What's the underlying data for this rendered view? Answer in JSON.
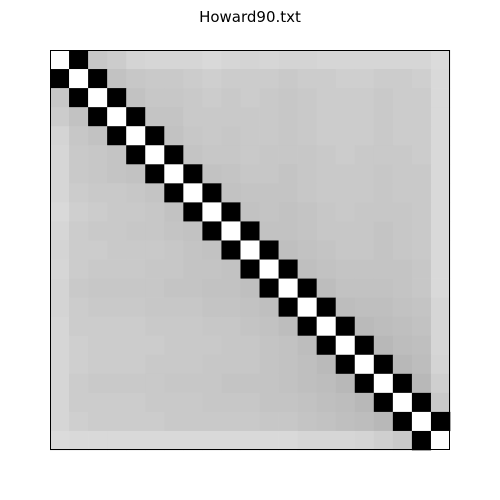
{
  "chart_data": {
    "type": "heatmap",
    "title": "Howard90.txt",
    "rows": 21,
    "cols": 21,
    "xlabel": "",
    "ylabel": "",
    "axes_ticks": "none",
    "colormap": "gray",
    "value_range": [
      0,
      1
    ],
    "values": [
      [
        1.0,
        0.0,
        0.78,
        0.8,
        0.83,
        0.84,
        0.84,
        0.84,
        0.85,
        0.84,
        0.83,
        0.84,
        0.83,
        0.83,
        0.84,
        0.84,
        0.84,
        0.84,
        0.84,
        0.84,
        0.86
      ],
      [
        0.0,
        1.0,
        0.0,
        0.76,
        0.78,
        0.79,
        0.79,
        0.8,
        0.81,
        0.8,
        0.8,
        0.8,
        0.79,
        0.8,
        0.8,
        0.81,
        0.81,
        0.8,
        0.8,
        0.81,
        0.85
      ],
      [
        0.78,
        0.0,
        1.0,
        0.0,
        0.76,
        0.78,
        0.78,
        0.79,
        0.8,
        0.79,
        0.8,
        0.79,
        0.78,
        0.79,
        0.8,
        0.8,
        0.8,
        0.79,
        0.8,
        0.8,
        0.85
      ],
      [
        0.8,
        0.76,
        0.0,
        1.0,
        0.0,
        0.77,
        0.77,
        0.79,
        0.79,
        0.79,
        0.79,
        0.79,
        0.78,
        0.79,
        0.8,
        0.8,
        0.8,
        0.79,
        0.8,
        0.8,
        0.85
      ],
      [
        0.83,
        0.78,
        0.76,
        0.0,
        1.0,
        0.0,
        0.76,
        0.78,
        0.79,
        0.78,
        0.79,
        0.79,
        0.78,
        0.79,
        0.8,
        0.8,
        0.8,
        0.79,
        0.8,
        0.8,
        0.85
      ],
      [
        0.84,
        0.79,
        0.78,
        0.77,
        0.0,
        1.0,
        0.0,
        0.77,
        0.78,
        0.78,
        0.79,
        0.78,
        0.78,
        0.78,
        0.79,
        0.8,
        0.79,
        0.79,
        0.79,
        0.8,
        0.85
      ],
      [
        0.84,
        0.79,
        0.78,
        0.77,
        0.76,
        0.0,
        1.0,
        0.0,
        0.76,
        0.77,
        0.78,
        0.78,
        0.77,
        0.78,
        0.79,
        0.79,
        0.79,
        0.78,
        0.79,
        0.79,
        0.85
      ],
      [
        0.84,
        0.8,
        0.79,
        0.79,
        0.78,
        0.77,
        0.0,
        1.0,
        0.0,
        0.76,
        0.77,
        0.77,
        0.77,
        0.78,
        0.79,
        0.79,
        0.79,
        0.78,
        0.79,
        0.79,
        0.85
      ],
      [
        0.85,
        0.81,
        0.8,
        0.79,
        0.79,
        0.78,
        0.76,
        0.0,
        1.0,
        0.0,
        0.76,
        0.77,
        0.76,
        0.77,
        0.78,
        0.79,
        0.78,
        0.78,
        0.78,
        0.79,
        0.85
      ],
      [
        0.84,
        0.8,
        0.79,
        0.79,
        0.78,
        0.78,
        0.77,
        0.76,
        0.0,
        1.0,
        0.0,
        0.76,
        0.76,
        0.77,
        0.78,
        0.78,
        0.78,
        0.77,
        0.78,
        0.79,
        0.85
      ],
      [
        0.83,
        0.8,
        0.8,
        0.79,
        0.79,
        0.79,
        0.78,
        0.77,
        0.76,
        0.0,
        1.0,
        0.0,
        0.75,
        0.76,
        0.77,
        0.78,
        0.78,
        0.77,
        0.78,
        0.79,
        0.85
      ],
      [
        0.84,
        0.8,
        0.79,
        0.79,
        0.79,
        0.78,
        0.78,
        0.77,
        0.77,
        0.76,
        0.0,
        1.0,
        0.0,
        0.75,
        0.76,
        0.77,
        0.77,
        0.77,
        0.77,
        0.78,
        0.85
      ],
      [
        0.83,
        0.79,
        0.78,
        0.78,
        0.78,
        0.78,
        0.77,
        0.77,
        0.76,
        0.76,
        0.75,
        0.0,
        1.0,
        0.0,
        0.74,
        0.76,
        0.76,
        0.76,
        0.77,
        0.78,
        0.85
      ],
      [
        0.83,
        0.8,
        0.79,
        0.79,
        0.79,
        0.78,
        0.78,
        0.78,
        0.77,
        0.77,
        0.76,
        0.75,
        0.0,
        1.0,
        0.0,
        0.74,
        0.75,
        0.75,
        0.76,
        0.77,
        0.84
      ],
      [
        0.84,
        0.8,
        0.8,
        0.8,
        0.8,
        0.79,
        0.79,
        0.79,
        0.78,
        0.78,
        0.77,
        0.76,
        0.74,
        0.0,
        1.0,
        0.0,
        0.73,
        0.74,
        0.75,
        0.76,
        0.84
      ],
      [
        0.84,
        0.81,
        0.8,
        0.8,
        0.8,
        0.8,
        0.79,
        0.79,
        0.79,
        0.78,
        0.78,
        0.77,
        0.76,
        0.74,
        0.0,
        1.0,
        0.0,
        0.72,
        0.74,
        0.75,
        0.84
      ],
      [
        0.84,
        0.81,
        0.8,
        0.8,
        0.8,
        0.79,
        0.79,
        0.79,
        0.78,
        0.78,
        0.78,
        0.77,
        0.76,
        0.75,
        0.73,
        0.0,
        1.0,
        0.0,
        0.72,
        0.74,
        0.83
      ],
      [
        0.84,
        0.8,
        0.79,
        0.79,
        0.79,
        0.79,
        0.78,
        0.78,
        0.78,
        0.77,
        0.77,
        0.77,
        0.76,
        0.75,
        0.74,
        0.72,
        0.0,
        1.0,
        0.0,
        0.72,
        0.81
      ],
      [
        0.84,
        0.8,
        0.8,
        0.8,
        0.8,
        0.79,
        0.79,
        0.79,
        0.78,
        0.78,
        0.78,
        0.77,
        0.77,
        0.76,
        0.75,
        0.74,
        0.72,
        0.0,
        1.0,
        0.0,
        0.79
      ],
      [
        0.84,
        0.81,
        0.8,
        0.8,
        0.8,
        0.8,
        0.79,
        0.79,
        0.79,
        0.79,
        0.79,
        0.78,
        0.78,
        0.77,
        0.76,
        0.75,
        0.74,
        0.72,
        0.0,
        1.0,
        0.0
      ],
      [
        0.86,
        0.85,
        0.85,
        0.85,
        0.85,
        0.85,
        0.85,
        0.85,
        0.85,
        0.85,
        0.85,
        0.85,
        0.85,
        0.84,
        0.84,
        0.84,
        0.83,
        0.81,
        0.79,
        0.0,
        1.0
      ]
    ]
  }
}
